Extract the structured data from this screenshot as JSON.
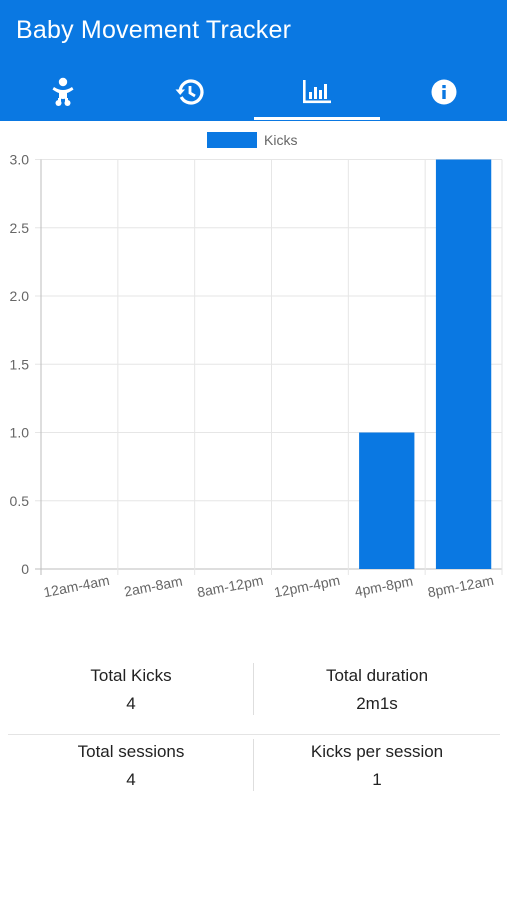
{
  "app": {
    "title": "Baby Movement Tracker"
  },
  "colors": {
    "primary": "#0a78e2",
    "bar": "#0a78e2",
    "grid": "#e6e6e6",
    "text": "#666666"
  },
  "tabs": [
    {
      "icon": "baby-icon",
      "active": false
    },
    {
      "icon": "history-icon",
      "active": false
    },
    {
      "icon": "bar-chart-icon",
      "active": true
    },
    {
      "icon": "info-icon",
      "active": false
    }
  ],
  "chart_data": {
    "type": "bar",
    "categories": [
      "12am-4am",
      "2am-8am",
      "8am-12pm",
      "12pm-4pm",
      "4pm-8pm",
      "8pm-12am"
    ],
    "series": [
      {
        "name": "Kicks",
        "values": [
          0,
          0,
          0,
          0,
          1,
          3
        ]
      }
    ],
    "ylim": [
      0,
      3
    ],
    "yticks": [
      "3.0",
      "2.5",
      "2.0",
      "1.5",
      "1.0",
      "0.5",
      "0"
    ],
    "grid": true,
    "legend": "top-center"
  },
  "stats": {
    "total_kicks_label": "Total Kicks",
    "total_kicks_value": "4",
    "total_duration_label": "Total duration",
    "total_duration_value": "2m1s",
    "total_sessions_label": "Total sessions",
    "total_sessions_value": "4",
    "kicks_per_session_label": "Kicks per session",
    "kicks_per_session_value": "1"
  }
}
